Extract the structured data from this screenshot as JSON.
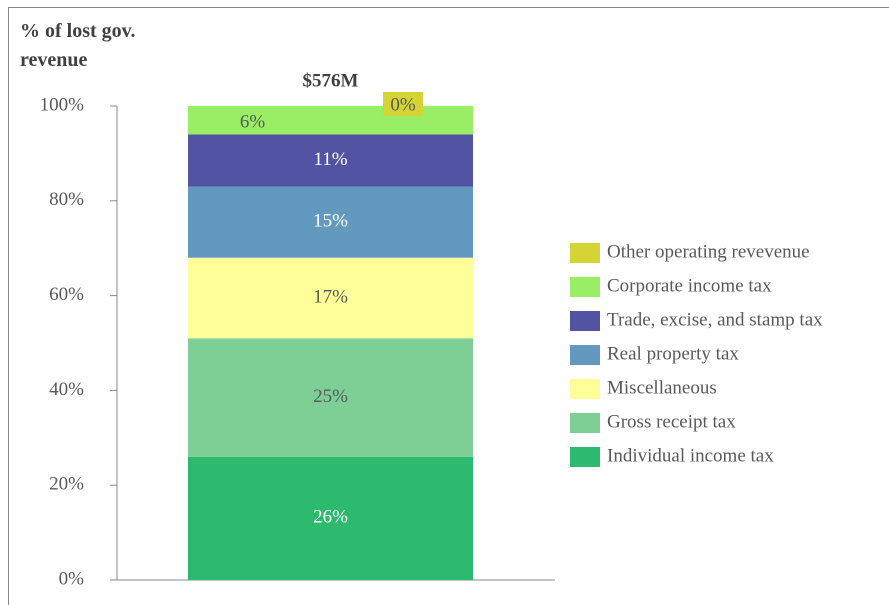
{
  "chart_data": {
    "type": "stacked_bar",
    "title": "% of lost gov. revenue",
    "categories": [
      "$576M"
    ],
    "series": [
      {
        "name": "Individual income tax",
        "color": "#2bba6e",
        "values": [
          26
        ],
        "value_labels": [
          "26%"
        ]
      },
      {
        "name": "Gross receipt tax",
        "color": "#7dcf96",
        "values": [
          25
        ],
        "value_labels": [
          "25%"
        ]
      },
      {
        "name": "Miscellaneous",
        "color": "#ffff99",
        "values": [
          17
        ],
        "value_labels": [
          "17%"
        ]
      },
      {
        "name": "Real property tax",
        "color": "#6399bf",
        "values": [
          15
        ],
        "value_labels": [
          "15%"
        ]
      },
      {
        "name": "Trade, excise, and stamp tax",
        "color": "#5254a3",
        "values": [
          11
        ],
        "value_labels": [
          "11%"
        ]
      },
      {
        "name": "Corporate income tax",
        "color": "#99ee66",
        "values": [
          6
        ],
        "value_labels": [
          "6%"
        ]
      },
      {
        "name": "Other operating revevenue",
        "color": "#d4d435",
        "values": [
          0
        ],
        "value_labels": [
          "0%"
        ]
      }
    ],
    "ylim": [
      0,
      100
    ],
    "yticks": [
      {
        "value": 0,
        "label": "0%"
      },
      {
        "value": 20,
        "label": "20%"
      },
      {
        "value": 40,
        "label": "40%"
      },
      {
        "value": 60,
        "label": "60%"
      },
      {
        "value": 80,
        "label": "80%"
      },
      {
        "value": 100,
        "label": "100%"
      }
    ],
    "legend": "right"
  }
}
